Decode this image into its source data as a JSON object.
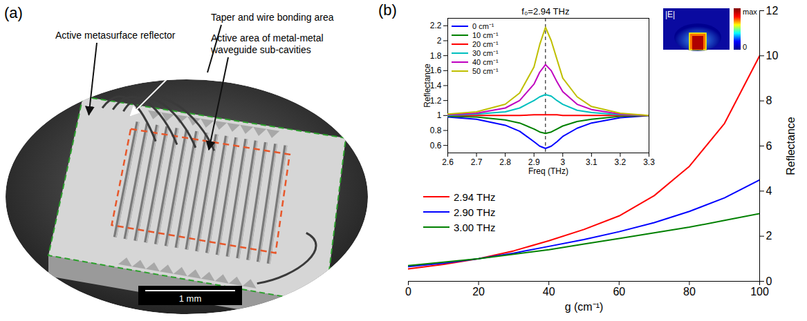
{
  "panel_a": {
    "letter": "(a)",
    "labels": [
      "Active metasurface reflector",
      "Taper and wire bonding area",
      "Active area of metal-metal waveguide sub-cavities"
    ],
    "scale_bar": "1 mm"
  },
  "chart_data": [
    {
      "type": "line",
      "panel_letter": "(b)",
      "xlabel": "g (cm⁻¹)",
      "ylabel": "Reflectance",
      "x": [
        0,
        10,
        20,
        30,
        40,
        50,
        60,
        70,
        80,
        90,
        100
      ],
      "xlim": [
        0,
        100
      ],
      "xticks": [
        0,
        20,
        40,
        60,
        80,
        100
      ],
      "ylim": [
        0,
        12
      ],
      "yticks": [
        0,
        2,
        4,
        6,
        8,
        10,
        12
      ],
      "legend": "bottom-left",
      "series": [
        {
          "name": "2.94 THz",
          "color": "#ff0000",
          "values": [
            0.55,
            0.75,
            1.0,
            1.35,
            1.8,
            2.3,
            2.9,
            3.8,
            5.1,
            7.0,
            10.0
          ]
        },
        {
          "name": "2.90 THz",
          "color": "#0000ff",
          "values": [
            0.65,
            0.8,
            1.0,
            1.25,
            1.55,
            1.85,
            2.2,
            2.6,
            3.1,
            3.7,
            4.5
          ]
        },
        {
          "name": "3.00 THz",
          "color": "#008000",
          "values": [
            0.7,
            0.85,
            1.0,
            1.2,
            1.4,
            1.65,
            1.9,
            2.15,
            2.4,
            2.7,
            3.0
          ]
        }
      ]
    },
    {
      "type": "line",
      "xlabel": "Freq (THz)",
      "ylabel": "Reflectance",
      "x": [
        2.6,
        2.7,
        2.8,
        2.85,
        2.9,
        2.92,
        2.94,
        2.96,
        2.98,
        3.0,
        3.05,
        3.1,
        3.2,
        3.3
      ],
      "xlim": [
        2.6,
        3.3
      ],
      "xticks": [
        2.6,
        2.7,
        2.8,
        2.9,
        3,
        3.1,
        3.2,
        3.3
      ],
      "ylim": [
        0.5,
        2.3
      ],
      "yticks": [
        0.6,
        0.8,
        1,
        1.2,
        1.4,
        1.6,
        1.8,
        2,
        2.2
      ],
      "legend": "top-left",
      "annotations": [
        {
          "x": 2.94,
          "text": "f₀=2.94 THz",
          "line_style": "dashed"
        }
      ],
      "field_map": {
        "title": "|E|",
        "max_label": "max",
        "min_label": "0"
      },
      "series": [
        {
          "name": "0 cm⁻¹",
          "color": "#0000ff",
          "values": [
            0.98,
            0.95,
            0.87,
            0.79,
            0.65,
            0.59,
            0.56,
            0.59,
            0.65,
            0.72,
            0.83,
            0.9,
            0.97,
            1.0
          ]
        },
        {
          "name": "10 cm⁻¹",
          "color": "#008000",
          "values": [
            0.99,
            0.98,
            0.94,
            0.9,
            0.82,
            0.78,
            0.76,
            0.78,
            0.82,
            0.86,
            0.92,
            0.95,
            0.99,
            1.0
          ]
        },
        {
          "name": "20 cm⁻¹",
          "color": "#ff0000",
          "values": [
            1.0,
            1.0,
            1.0,
            1.0,
            1.01,
            1.01,
            1.01,
            1.01,
            1.01,
            1.0,
            1.0,
            1.0,
            1.0,
            1.0
          ]
        },
        {
          "name": "30 cm⁻¹",
          "color": "#00bfbf",
          "values": [
            1.0,
            1.02,
            1.05,
            1.1,
            1.2,
            1.25,
            1.28,
            1.26,
            1.2,
            1.15,
            1.07,
            1.04,
            1.01,
            1.0
          ]
        },
        {
          "name": "40 cm⁻¹",
          "color": "#bf00bf",
          "values": [
            1.01,
            1.03,
            1.1,
            1.2,
            1.42,
            1.58,
            1.68,
            1.6,
            1.45,
            1.32,
            1.15,
            1.08,
            1.02,
            1.0
          ]
        },
        {
          "name": "50 cm⁻¹",
          "color": "#bfbf00",
          "values": [
            1.02,
            1.05,
            1.15,
            1.3,
            1.65,
            1.95,
            2.18,
            2.0,
            1.75,
            1.5,
            1.25,
            1.12,
            1.03,
            1.0
          ]
        }
      ]
    }
  ]
}
